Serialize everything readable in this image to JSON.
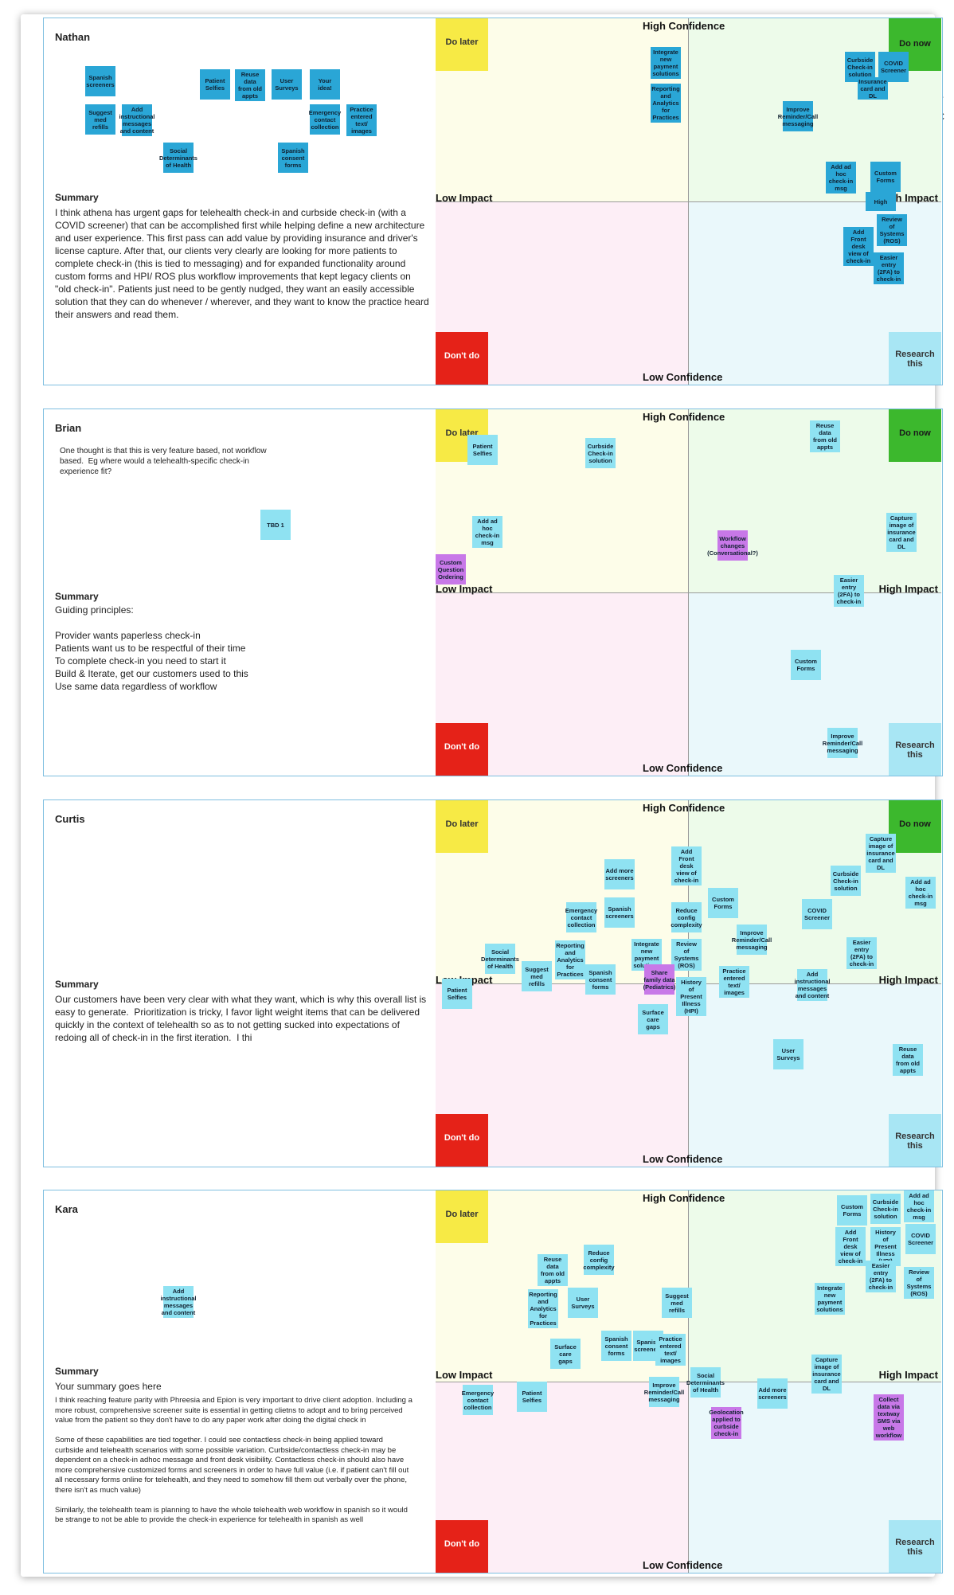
{
  "quadrant_labels": {
    "high_confidence": "High Confidence",
    "low_confidence": "Low Confidence",
    "low_impact": "Low Impact",
    "high_impact": "High Impact",
    "do_later": "Do later",
    "do_now": "Do now",
    "dont_do": "Don't do",
    "research": "Research this"
  },
  "panels": {
    "nathan": {
      "name": "Nathan",
      "summary_label": "Summary",
      "summary": "I think athena has urgent gaps for telehealth check-in and curbside check-in (with a COVID screener) that can be accomplished first while helping define a new architecture and user experience. This first pass can add value by providing insurance and driver's license capture. After that, our clients very clearly are looking for more patients to complete check-in (this is tied to messaging) and for expanded functionality around custom forms and HPI/ ROS plus workflow improvements that kept legacy clients on \"old check-in\". Patients just need to be gently nudged, they want an easily accessible solution that they can do whenever / wherever, and they want to know the practice heard their answers and read them.",
      "left_stickies": [
        "Spanish screeners",
        "Patient Selfies",
        "Reuse data from old appts",
        "User Surveys",
        "Your idea!",
        "Suggest med refills",
        "Add instructional messages and content",
        "Emergency contact collection",
        "Practice entered text/ images",
        "Social Determinants of Health",
        "Spanish consent forms"
      ],
      "board_stickies": [
        "Integrate new payment solutions",
        "Reporting and Analytics for Practices",
        "Curbside Check-in solution",
        "COVID Screener",
        "Insurance card and DL",
        "Improve Reminder/Call messaging",
        "Add ad hoc check-in msg",
        "Custom Forms",
        "High",
        "Review of Systems (ROS)",
        "Add Front desk view of check-in",
        "Easier entry (2FA) to check-in"
      ]
    },
    "brian": {
      "name": "Brian",
      "note": "One thought is that this is very feature based, not workflow based.  Eg where would a telehealth-specific check-in experience fit?",
      "summary_label": "Summary",
      "summary": "Guiding principles:\n\nProvider wants paperless check-in\nPatients want us to be respectful of their time\nTo complete check-in you need to start it\nBuild & Iterate, get our customers used to this\nUse same data regardless of workflow",
      "left_stickies": [
        "TBD 1"
      ],
      "board_stickies": [
        "Patient Selfies",
        "Curbside Check-in solution",
        "Reuse data from old appts",
        "Add ad hoc check-in msg",
        "Workflow changes (Conversational?)",
        "Capture image of insurance card and DL",
        "Custom Question Ordering",
        "Easier entry (2FA) to check-in",
        "Custom Forms",
        "Improve Reminder/Call messaging"
      ]
    },
    "curtis": {
      "name": "Curtis",
      "summary_label": "Summary",
      "summary": "Our customers have been very clear with what they want, which is why this overall list is easy to generate.  Prioritization is tricky, I favor light weight items that can be delivered quickly in the context of telehealth so as to not getting sucked into expectations of redoing all of check-in in the first iteration.  I thi",
      "board_stickies": [
        "Capture image of insurance card and DL",
        "Add Front desk view of check-in",
        "Add more screeners",
        "Curbside Check-in solution",
        "Add ad hoc check-in msg",
        "Custom Forms",
        "Emergency contact collection",
        "Spanish screeners",
        "Reduce config complexity",
        "COVID Screener",
        "Improve Reminder/Call messaging",
        "Reporting and Analytics for Practices",
        "Social Determinants of Health",
        "Integrate new payment solutions",
        "Review of Systems (ROS)",
        "Easier entry (2FA) to check-in",
        "Suggest med refills",
        "Spanish consent forms",
        "Share family data (Pediatrics)",
        "Practice entered text/ images",
        "Add instructional messages and content",
        "History of Present Illness (HPI)",
        "Patient Selfies",
        "Surface care gaps",
        "User Surveys",
        "Reuse data from old appts"
      ]
    },
    "kara": {
      "name": "Kara",
      "summary_label": "Summary",
      "summary_heading": "Your summary goes here",
      "summary": "I think reaching feature parity with Phreesia and Epion is very important to drive client adoption. Including a more robust, comprehensive screener suite is essential in getting clietns to adopt and to bring perceived value from the patient so they don't have to do any paper work after doing the digital check in\n\nSome of these capabilities are tied together. I could see contactless check-in being applied toward curbside and telehealth scenarios with some possible variation. Curbside/contactless check-in may be dependent on a check-in adhoc message and front desk visibility. Contactless check-in should also have more comprehensive customized forms and screeners in order to have full value (i.e. if patient can't fill out all necessary forms online for telehealth, and they need to somehow fill them out verbally over the phone, there isn't as much value)\n\nSimilarly, the telehealth team is planning to have the whole telehealth web workflow in spanish so it would be strange to not be able to provide the check-in experience for telehealth in spanish as well",
      "left_stickies": [
        "Add instructional messages and content"
      ],
      "board_stickies": [
        "Custom Forms",
        "Curbside Check-in solution",
        "Add ad hoc check-in msg",
        "Add Front desk view of check-in",
        "History of Present Illness (HPI)",
        "COVID Screener",
        "Reduce config complexity",
        "Reuse data from old appts",
        "Easier entry (2FA) to check-in",
        "Review of Systems (ROS)",
        "Reporting and Analytics for Practices",
        "User Surveys",
        "Suggest med refills",
        "Integrate new payment solutions",
        "Spanish consent forms",
        "Spanish screeners",
        "Surface care gaps",
        "Practice entered text/ images",
        "Capture image of insurance card and DL",
        "Social Determinants of Health",
        "Improve Reminder/Call messaging",
        "Add more screeners",
        "Emergency contact collection",
        "Patient Selfies",
        "Geolocation applied to curbside check-in",
        "Collect data via textway SMS via web workflow"
      ]
    }
  },
  "clipped_text": "Ir\nC"
}
